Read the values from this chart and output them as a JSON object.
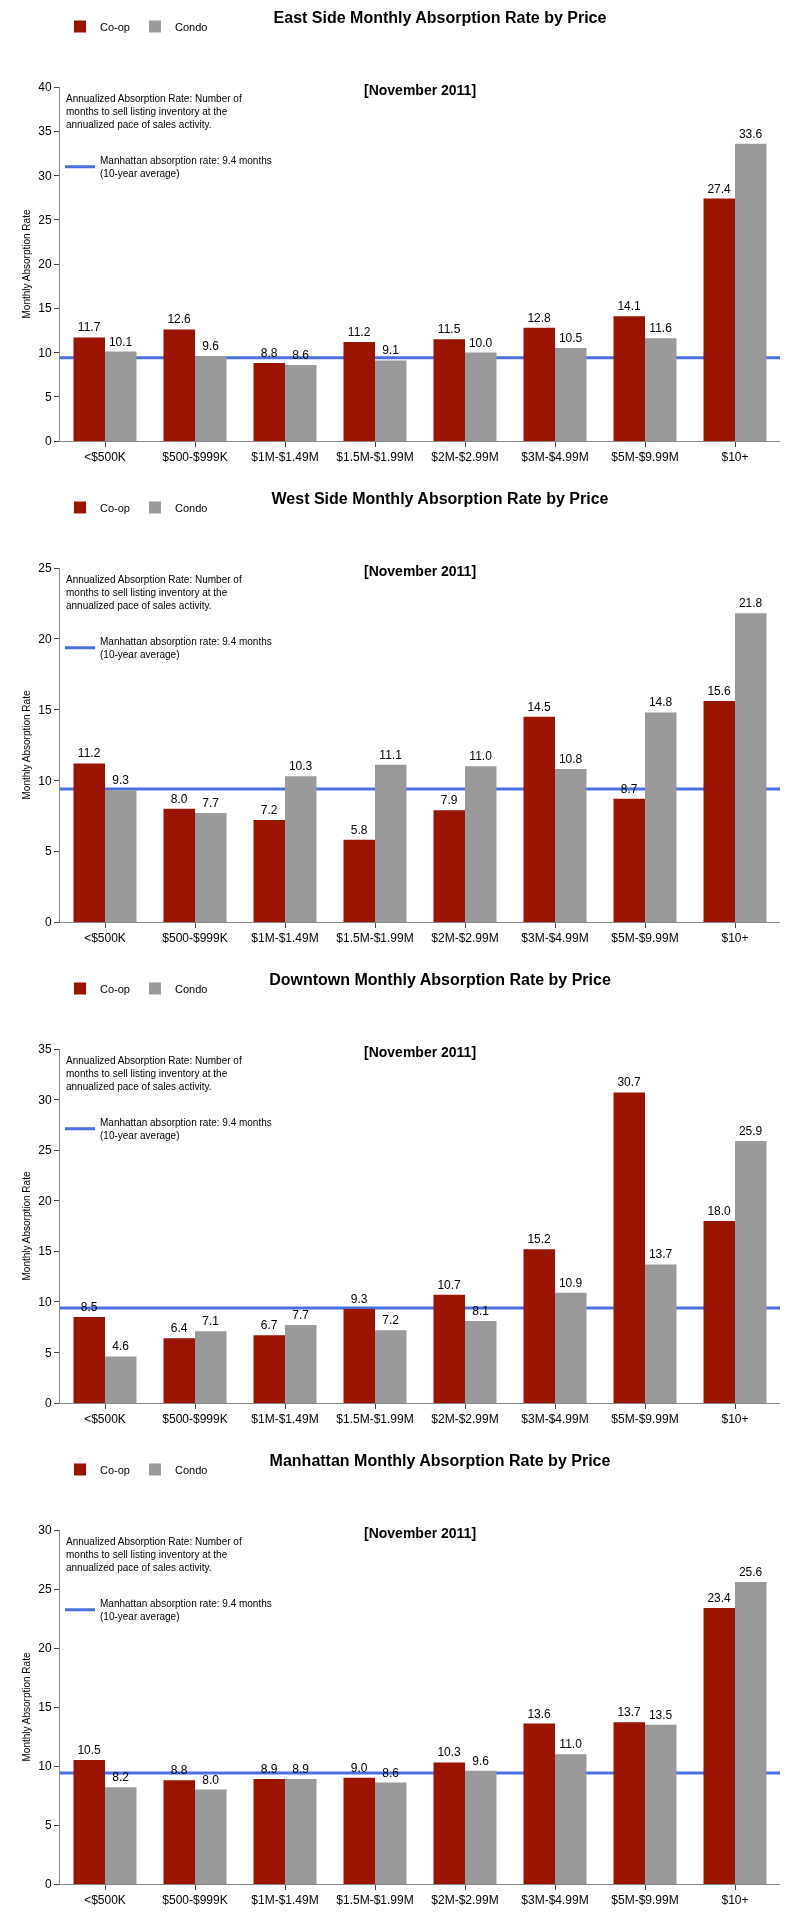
{
  "chart_data": [
    {
      "type": "bar",
      "title": "East Side Monthly Absorption Rate by Price",
      "subtitle": "[November 2011]",
      "ylabel": "Monthly Absorption Rate",
      "categories": [
        "<$500K",
        "$500-$999K",
        "$1M-$1.49M",
        "$1.5M-$1.99M",
        "$2M-$2.99M",
        "$3M-$4.99M",
        "$5M-$9.99M",
        "$10+"
      ],
      "series": [
        {
          "name": "Co-op",
          "color": "#9b1400",
          "values": [
            11.7,
            12.6,
            8.8,
            11.2,
            11.5,
            12.8,
            14.1,
            27.4
          ],
          "value_labels": [
            "11.7",
            "12.6",
            "8.8",
            "11.2",
            "11.5",
            "12.8",
            "14.1",
            "27.4"
          ]
        },
        {
          "name": "Condo",
          "color": "#999999",
          "values": [
            10.1,
            9.6,
            8.6,
            9.1,
            10.0,
            10.5,
            11.6,
            33.6
          ],
          "value_labels": [
            "10.1",
            "9.6",
            "8.6",
            "9.1",
            "10.0",
            "10.5",
            "11.6",
            "33.6"
          ]
        }
      ],
      "ylim": [
        0,
        40
      ],
      "yticks": [
        0,
        5,
        10,
        15,
        20,
        25,
        30,
        35,
        40
      ],
      "grid": false,
      "legend": "top left",
      "ref_lines": [
        {
          "axis": "y",
          "value": 9.4,
          "label": "Manhattan absorption rate: 9.4 months\n(10-year average)",
          "color": "#4a6fe0"
        }
      ],
      "annotations": [
        "Annualized Absorption Rate: Number of\nmonths to sell listing inventory at the\nannualized pace of sales activity."
      ]
    },
    {
      "type": "bar",
      "title": "West Side Monthly Absorption Rate by Price",
      "subtitle": "[November 2011]",
      "ylabel": "Monthly Absorption Rate",
      "categories": [
        "<$500K",
        "$500-$999K",
        "$1M-$1.49M",
        "$1.5M-$1.99M",
        "$2M-$2.99M",
        "$3M-$4.99M",
        "$5M-$9.99M",
        "$10+"
      ],
      "series": [
        {
          "name": "Co-op",
          "color": "#9b1400",
          "values": [
            11.2,
            8.0,
            7.2,
            5.8,
            7.9,
            14.5,
            8.7,
            15.6
          ],
          "value_labels": [
            "11.2",
            "8.0",
            "7.2",
            "5.8",
            "7.9",
            "14.5",
            "8.7",
            "15.6"
          ]
        },
        {
          "name": "Condo",
          "color": "#999999",
          "values": [
            9.3,
            7.7,
            10.3,
            11.1,
            11.0,
            10.8,
            14.8,
            21.8
          ],
          "value_labels": [
            "9.3",
            "7.7",
            "10.3",
            "11.1",
            "11.0",
            "10.8",
            "14.8",
            "21.8"
          ]
        }
      ],
      "ylim": [
        0,
        25
      ],
      "yticks": [
        0,
        5,
        10,
        15,
        20,
        25
      ],
      "grid": false,
      "legend": "top left",
      "ref_lines": [
        {
          "axis": "y",
          "value": 9.4,
          "label": "Manhattan absorption rate: 9.4 months\n(10-year average)",
          "color": "#4a6fe0"
        }
      ],
      "annotations": [
        "Annualized Absorption Rate: Number of\nmonths to sell listing inventory at the\nannualized pace of sales activity."
      ]
    },
    {
      "type": "bar",
      "title": "Downtown Monthly Absorption Rate by Price",
      "subtitle": "[November 2011]",
      "ylabel": "Monthly Absorption Rate",
      "categories": [
        "<$500K",
        "$500-$999K",
        "$1M-$1.49M",
        "$1.5M-$1.99M",
        "$2M-$2.99M",
        "$3M-$4.99M",
        "$5M-$9.99M",
        "$10+"
      ],
      "series": [
        {
          "name": "Co-op",
          "color": "#9b1400",
          "values": [
            8.5,
            6.4,
            6.7,
            9.3,
            10.7,
            15.2,
            30.7,
            18.0
          ],
          "value_labels": [
            "8.5",
            "6.4",
            "6.7",
            "9.3",
            "10.7",
            "15.2",
            "30.7",
            "18.0"
          ]
        },
        {
          "name": "Condo",
          "color": "#999999",
          "values": [
            4.6,
            7.1,
            7.7,
            7.2,
            8.1,
            10.9,
            13.7,
            25.9
          ],
          "value_labels": [
            "4.6",
            "7.1",
            "7.7",
            "7.2",
            "8.1",
            "10.9",
            "13.7",
            "25.9"
          ]
        }
      ],
      "ylim": [
        0,
        35
      ],
      "yticks": [
        0,
        5,
        10,
        15,
        20,
        25,
        30,
        35
      ],
      "grid": false,
      "legend": "top left",
      "ref_lines": [
        {
          "axis": "y",
          "value": 9.4,
          "label": "Manhattan absorption rate: 9.4 months\n(10-year average)",
          "color": "#4a6fe0"
        }
      ],
      "annotations": [
        "Annualized Absorption Rate: Number of\nmonths to sell listing inventory at the\nannualized pace of sales activity."
      ]
    },
    {
      "type": "bar",
      "title": "Manhattan Monthly Absorption Rate by Price",
      "subtitle": "[November 2011]",
      "ylabel": "Monthly Absorption Rate",
      "categories": [
        "<$500K",
        "$500-$999K",
        "$1M-$1.49M",
        "$1.5M-$1.99M",
        "$2M-$2.99M",
        "$3M-$4.99M",
        "$5M-$9.99M",
        "$10+"
      ],
      "series": [
        {
          "name": "Co-op",
          "color": "#9b1400",
          "values": [
            10.5,
            8.8,
            8.9,
            9.0,
            10.3,
            13.6,
            13.7,
            23.4
          ],
          "value_labels": [
            "10.5",
            "8.8",
            "8.9",
            "9.0",
            "10.3",
            "13.6",
            "13.7",
            "23.4"
          ]
        },
        {
          "name": "Condo",
          "color": "#999999",
          "values": [
            8.2,
            8.0,
            8.9,
            8.6,
            9.6,
            11.0,
            13.5,
            25.6
          ],
          "value_labels": [
            "8.2",
            "8.0",
            "8.9",
            "8.6",
            "9.6",
            "11.0",
            "13.5",
            "25.6"
          ]
        }
      ],
      "ylim": [
        0,
        30
      ],
      "yticks": [
        0,
        5,
        10,
        15,
        20,
        25,
        30
      ],
      "grid": false,
      "legend": "top left",
      "ref_lines": [
        {
          "axis": "y",
          "value": 9.4,
          "label": "Manhattan absorption rate: 9.4 months\n(10-year average)",
          "color": "#4a6fe0"
        }
      ],
      "annotations": [
        "Annualized Absorption Rate: Number of\nmonths to sell listing inventory at the\nannualized pace of sales activity."
      ]
    }
  ]
}
